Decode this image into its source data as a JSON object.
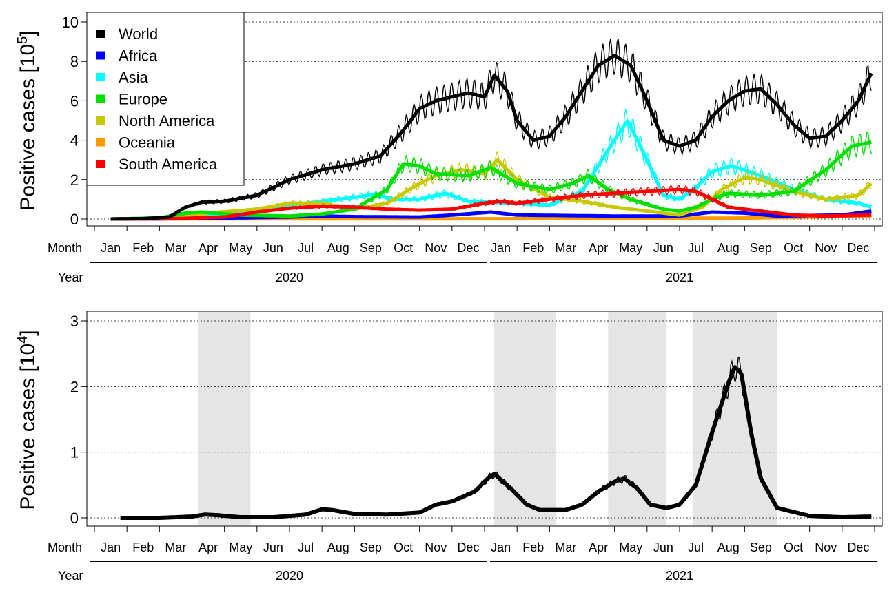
{
  "chart_data": [
    {
      "type": "line",
      "ylabel": "Positive cases [10",
      "ylabel_exp": "5",
      "ylabel_close": "]",
      "ylim": [
        0,
        10
      ],
      "yticks": [
        "0",
        "2",
        "4",
        "6",
        "8",
        "10"
      ],
      "grid": "horizontal dotted",
      "legend_position": "top-left",
      "month_row_label": "Month",
      "year_row_label": "Year",
      "months": [
        "Jan",
        "Feb",
        "Mar",
        "Apr",
        "May",
        "Jun",
        "Jul",
        "Aug",
        "Sep",
        "Oct",
        "Nov",
        "Dec",
        "Jan",
        "Feb",
        "Mar",
        "Apr",
        "May",
        "Jun",
        "Jul",
        "Aug",
        "Sep",
        "Oct",
        "Nov",
        "Dec"
      ],
      "years": [
        "2020",
        "2021"
      ],
      "x_unit": "month index from Jan 2020 (0 = 1 Jan 2020, 24 = 1 Jan 2022)",
      "series": [
        {
          "name": "World",
          "color": "#000000",
          "points": [
            [
              0.5,
              0
            ],
            [
              1.5,
              0.02
            ],
            [
              2.3,
              0.1
            ],
            [
              2.8,
              0.6
            ],
            [
              3.3,
              0.85
            ],
            [
              4,
              0.9
            ],
            [
              5,
              1.2
            ],
            [
              6,
              2.0
            ],
            [
              7,
              2.5
            ],
            [
              8,
              2.8
            ],
            [
              8.8,
              3.2
            ],
            [
              9.5,
              4.5
            ],
            [
              10,
              5.6
            ],
            [
              10.5,
              6.0
            ],
            [
              11,
              6.2
            ],
            [
              11.5,
              6.4
            ],
            [
              12,
              6.2
            ],
            [
              12.3,
              7.3
            ],
            [
              12.7,
              6.5
            ],
            [
              13,
              5.0
            ],
            [
              13.5,
              4.0
            ],
            [
              14,
              4.2
            ],
            [
              14.5,
              5.2
            ],
            [
              15,
              6.5
            ],
            [
              15.5,
              7.8
            ],
            [
              16,
              8.3
            ],
            [
              16.5,
              7.8
            ],
            [
              17,
              6.0
            ],
            [
              17.5,
              4.0
            ],
            [
              18,
              3.7
            ],
            [
              18.5,
              4.0
            ],
            [
              19,
              5.2
            ],
            [
              19.5,
              6.0
            ],
            [
              20,
              6.5
            ],
            [
              20.5,
              6.6
            ],
            [
              21,
              5.8
            ],
            [
              21.5,
              4.8
            ],
            [
              22,
              4.1
            ],
            [
              22.5,
              4.2
            ],
            [
              23,
              5.0
            ],
            [
              23.5,
              6.0
            ],
            [
              23.9,
              7.4
            ]
          ]
        },
        {
          "name": "Africa",
          "color": "#0000ff",
          "points": [
            [
              0.5,
              0
            ],
            [
              3,
              0.02
            ],
            [
              6,
              0.1
            ],
            [
              7,
              0.15
            ],
            [
              8,
              0.12
            ],
            [
              10,
              0.1
            ],
            [
              11,
              0.2
            ],
            [
              12.2,
              0.35
            ],
            [
              13,
              0.2
            ],
            [
              16,
              0.15
            ],
            [
              18,
              0.15
            ],
            [
              19,
              0.35
            ],
            [
              20,
              0.3
            ],
            [
              21,
              0.15
            ],
            [
              23,
              0.2
            ],
            [
              23.9,
              0.4
            ]
          ]
        },
        {
          "name": "Asia",
          "color": "#00ffff",
          "points": [
            [
              0.5,
              0
            ],
            [
              2,
              0.05
            ],
            [
              4,
              0.25
            ],
            [
              6,
              0.7
            ],
            [
              7,
              0.9
            ],
            [
              8,
              1.1
            ],
            [
              8.6,
              1.25
            ],
            [
              9.2,
              1.0
            ],
            [
              10,
              1.0
            ],
            [
              10.8,
              1.3
            ],
            [
              11.5,
              0.9
            ],
            [
              13,
              0.8
            ],
            [
              14,
              0.7
            ],
            [
              15,
              1.4
            ],
            [
              15.8,
              3.5
            ],
            [
              16.4,
              5.0
            ],
            [
              17,
              3.0
            ],
            [
              17.5,
              1.2
            ],
            [
              18,
              1.0
            ],
            [
              18.5,
              1.6
            ],
            [
              19,
              2.4
            ],
            [
              19.6,
              2.7
            ],
            [
              20.5,
              2.2
            ],
            [
              21.5,
              1.5
            ],
            [
              22.5,
              1.0
            ],
            [
              23.5,
              0.8
            ],
            [
              23.9,
              0.6
            ]
          ]
        },
        {
          "name": "Europe",
          "color": "#00e000",
          "points": [
            [
              0.5,
              0
            ],
            [
              2,
              0.05
            ],
            [
              2.8,
              0.3
            ],
            [
              3.3,
              0.35
            ],
            [
              4.5,
              0.2
            ],
            [
              6,
              0.15
            ],
            [
              7,
              0.25
            ],
            [
              8,
              0.5
            ],
            [
              9,
              1.5
            ],
            [
              9.5,
              2.8
            ],
            [
              10,
              2.7
            ],
            [
              10.5,
              2.3
            ],
            [
              11.5,
              2.2
            ],
            [
              12.2,
              2.6
            ],
            [
              13,
              1.8
            ],
            [
              14,
              1.5
            ],
            [
              14.7,
              1.8
            ],
            [
              15.2,
              2.2
            ],
            [
              15.8,
              1.5
            ],
            [
              16.5,
              1.0
            ],
            [
              17.5,
              0.5
            ],
            [
              18,
              0.4
            ],
            [
              18.5,
              0.6
            ],
            [
              19,
              1.0
            ],
            [
              19.5,
              1.3
            ],
            [
              20.5,
              1.2
            ],
            [
              21.5,
              1.4
            ],
            [
              22.5,
              2.5
            ],
            [
              23.3,
              3.7
            ],
            [
              23.9,
              3.9
            ]
          ]
        },
        {
          "name": "North America",
          "color": "#c8c800",
          "points": [
            [
              0.5,
              0
            ],
            [
              2.5,
              0.05
            ],
            [
              3.5,
              0.3
            ],
            [
              5,
              0.5
            ],
            [
              6,
              0.8
            ],
            [
              7,
              0.8
            ],
            [
              8,
              0.5
            ],
            [
              9,
              0.8
            ],
            [
              10,
              1.8
            ],
            [
              10.5,
              2.2
            ],
            [
              11.3,
              2.5
            ],
            [
              12,
              2.3
            ],
            [
              12.4,
              3.0
            ],
            [
              13,
              2.0
            ],
            [
              14,
              1.1
            ],
            [
              15,
              0.9
            ],
            [
              16,
              0.6
            ],
            [
              17,
              0.4
            ],
            [
              18,
              0.2
            ],
            [
              18.7,
              0.6
            ],
            [
              19.3,
              1.5
            ],
            [
              20,
              2.1
            ],
            [
              20.5,
              2.0
            ],
            [
              21.5,
              1.4
            ],
            [
              22.5,
              1.0
            ],
            [
              23.5,
              1.2
            ],
            [
              23.9,
              1.8
            ]
          ]
        },
        {
          "name": "Oceania",
          "color": "#ff9a00",
          "points": [
            [
              0.5,
              0
            ],
            [
              5,
              0.01
            ],
            [
              10,
              0.01
            ],
            [
              15,
              0.02
            ],
            [
              20,
              0.05
            ],
            [
              22,
              0.1
            ],
            [
              23.9,
              0.15
            ]
          ]
        },
        {
          "name": "South America",
          "color": "#ff0000",
          "points": [
            [
              0.5,
              0
            ],
            [
              2.5,
              0.02
            ],
            [
              4,
              0.1
            ],
            [
              5,
              0.35
            ],
            [
              6,
              0.55
            ],
            [
              7,
              0.65
            ],
            [
              8,
              0.6
            ],
            [
              9,
              0.5
            ],
            [
              10,
              0.45
            ],
            [
              11,
              0.5
            ],
            [
              12,
              0.8
            ],
            [
              12.5,
              0.9
            ],
            [
              13,
              0.8
            ],
            [
              14,
              1.0
            ],
            [
              15,
              1.2
            ],
            [
              16,
              1.3
            ],
            [
              17,
              1.4
            ],
            [
              18,
              1.5
            ],
            [
              18.5,
              1.4
            ],
            [
              19,
              1.0
            ],
            [
              19.5,
              0.6
            ],
            [
              20.5,
              0.4
            ],
            [
              21.5,
              0.2
            ],
            [
              22.5,
              0.15
            ],
            [
              23.9,
              0.2
            ]
          ]
        }
      ]
    },
    {
      "type": "line",
      "ylabel": "Positive cases [10",
      "ylabel_exp": "4",
      "ylabel_close": "]",
      "ylim": [
        0,
        3
      ],
      "yticks": [
        "0",
        "1",
        "2",
        "3"
      ],
      "grid": "horizontal dotted",
      "month_row_label": "Month",
      "year_row_label": "Year",
      "months": [
        "Jan",
        "Feb",
        "Mar",
        "Apr",
        "May",
        "Jun",
        "Jul",
        "Aug",
        "Sep",
        "Oct",
        "Nov",
        "Dec",
        "Jan",
        "Feb",
        "Mar",
        "Apr",
        "May",
        "Jun",
        "Jul",
        "Aug",
        "Sep",
        "Oct",
        "Nov",
        "Dec"
      ],
      "years": [
        "2020",
        "2021"
      ],
      "x_unit": "month index from Jan 2020 (0 = 1 Jan 2020, 24 = 1 Jan 2022)",
      "shaded_periods": [
        [
          3.2,
          4.8
        ],
        [
          12.3,
          14.2
        ],
        [
          15.8,
          17.6
        ],
        [
          18.4,
          21.0
        ]
      ],
      "series": [
        {
          "color": "#000000",
          "points": [
            [
              0.8,
              0
            ],
            [
              2,
              0
            ],
            [
              3,
              0.02
            ],
            [
              3.4,
              0.05
            ],
            [
              3.8,
              0.04
            ],
            [
              4.5,
              0.01
            ],
            [
              5.5,
              0.01
            ],
            [
              6.5,
              0.05
            ],
            [
              7,
              0.13
            ],
            [
              7.3,
              0.12
            ],
            [
              8,
              0.06
            ],
            [
              9,
              0.05
            ],
            [
              10,
              0.08
            ],
            [
              10.5,
              0.2
            ],
            [
              11,
              0.25
            ],
            [
              11.7,
              0.4
            ],
            [
              12.1,
              0.6
            ],
            [
              12.3,
              0.67
            ],
            [
              12.8,
              0.45
            ],
            [
              13.3,
              0.2
            ],
            [
              13.7,
              0.12
            ],
            [
              14.5,
              0.12
            ],
            [
              15,
              0.2
            ],
            [
              15.5,
              0.4
            ],
            [
              16,
              0.55
            ],
            [
              16.3,
              0.6
            ],
            [
              16.7,
              0.45
            ],
            [
              17.1,
              0.2
            ],
            [
              17.6,
              0.15
            ],
            [
              18,
              0.2
            ],
            [
              18.5,
              0.5
            ],
            [
              19,
              1.3
            ],
            [
              19.5,
              2.05
            ],
            [
              19.7,
              2.3
            ],
            [
              19.9,
              2.2
            ],
            [
              20.2,
              1.3
            ],
            [
              20.5,
              0.6
            ],
            [
              21,
              0.15
            ],
            [
              22,
              0.03
            ],
            [
              23,
              0.01
            ],
            [
              23.9,
              0.02
            ]
          ]
        }
      ]
    }
  ]
}
